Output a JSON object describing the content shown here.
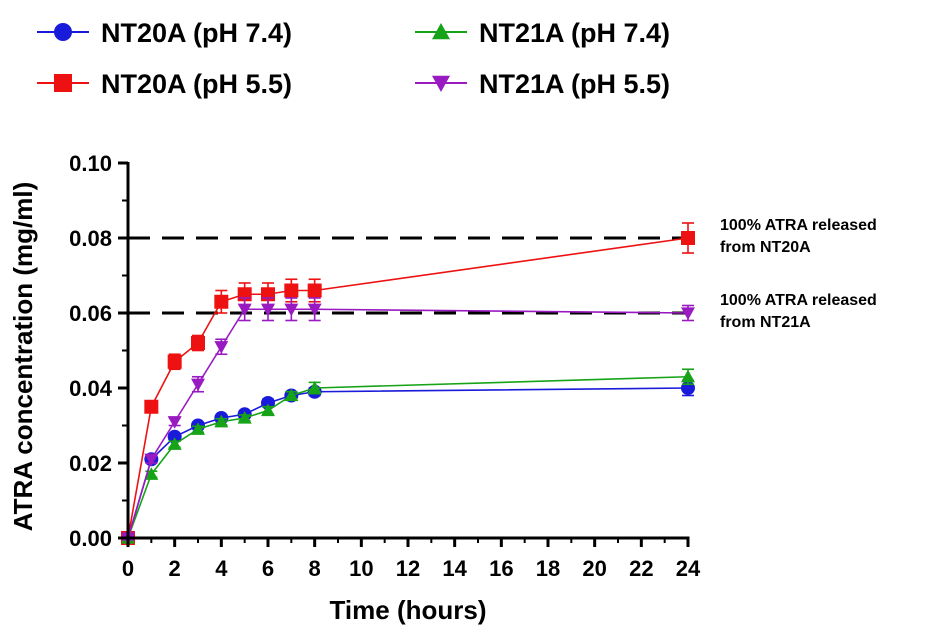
{
  "chart_data": {
    "type": "line",
    "title": "",
    "xlabel": "Time (hours)",
    "ylabel": "ATRA concentration (mg/ml)",
    "xlim": [
      0,
      24
    ],
    "ylim": [
      0,
      0.1
    ],
    "x_ticks": [
      "0",
      "2",
      "4",
      "6",
      "8",
      "10",
      "12",
      "14",
      "16",
      "18",
      "20",
      "22",
      "24"
    ],
    "y_ticks": [
      "0.00",
      "0.02",
      "0.04",
      "0.06",
      "0.08",
      "0.10"
    ],
    "legend_position": "top",
    "grid": false,
    "reference_lines": [
      {
        "y": 0.08,
        "label_lines": [
          "100% ATRA released",
          "from NT20A"
        ]
      },
      {
        "y": 0.06,
        "label_lines": [
          "100% ATRA released",
          "from NT21A"
        ]
      }
    ],
    "series": [
      {
        "name": "NT20A (pH 7.4)",
        "color": "#1a1adb",
        "marker": "circle",
        "x": [
          0,
          1,
          2,
          3,
          4,
          5,
          6,
          7,
          8,
          24
        ],
        "y": [
          0.0,
          0.021,
          0.027,
          0.03,
          0.032,
          0.033,
          0.036,
          0.038,
          0.039,
          0.04
        ],
        "err": [
          0.0005,
          0.0008,
          0.0008,
          0.0008,
          0.0008,
          0.0008,
          0.001,
          0.001,
          0.001,
          0.002
        ]
      },
      {
        "name": "NT20A (pH 5.5)",
        "color": "#ee1111",
        "marker": "square",
        "x": [
          0,
          1,
          2,
          3,
          4,
          5,
          6,
          7,
          8,
          24
        ],
        "y": [
          0.0,
          0.035,
          0.047,
          0.052,
          0.063,
          0.065,
          0.065,
          0.066,
          0.066,
          0.08
        ],
        "err": [
          0.0005,
          0.001,
          0.002,
          0.002,
          0.003,
          0.003,
          0.003,
          0.003,
          0.003,
          0.004
        ]
      },
      {
        "name": "NT21A (pH 7.4)",
        "color": "#17a317",
        "marker": "triangle-up",
        "x": [
          0,
          1,
          2,
          3,
          4,
          5,
          6,
          7,
          8,
          24
        ],
        "y": [
          0.0,
          0.017,
          0.025,
          0.029,
          0.031,
          0.032,
          0.034,
          0.038,
          0.04,
          0.043
        ],
        "err": [
          0.0005,
          0.0008,
          0.0008,
          0.0008,
          0.0008,
          0.0008,
          0.001,
          0.001,
          0.0015,
          0.002
        ]
      },
      {
        "name": "NT21A (pH 5.5)",
        "color": "#9a1ac2",
        "marker": "triangle-down",
        "x": [
          0,
          1,
          2,
          3,
          4,
          5,
          6,
          7,
          8,
          24
        ],
        "y": [
          0.0,
          0.021,
          0.031,
          0.041,
          0.051,
          0.061,
          0.061,
          0.061,
          0.061,
          0.06
        ],
        "err": [
          0.0005,
          0.001,
          0.001,
          0.002,
          0.002,
          0.003,
          0.003,
          0.003,
          0.003,
          0.002
        ]
      }
    ]
  }
}
